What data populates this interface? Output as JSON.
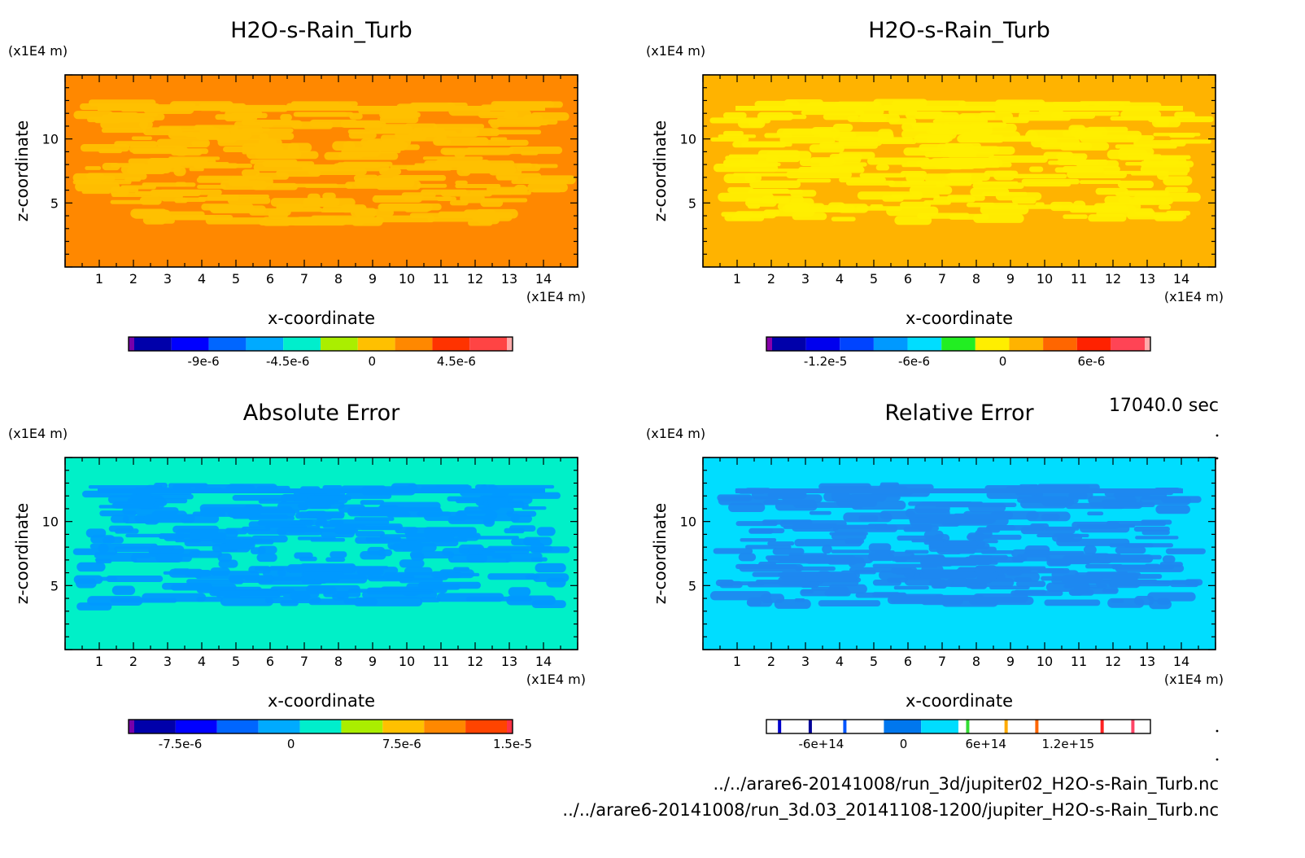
{
  "time_label": "17040.0 sec",
  "files": {
    "file1": "../../arare6-20141008/run_3d/jupiter02_H2O-s-Rain_Turb.nc",
    "file2": "../../arare6-20141008/run_3d.03_20141108-1200/jupiter_H2O-s-Rain_Turb.nc"
  },
  "chart_data": [
    {
      "type": "heatmap",
      "title": "H2O-s-Rain_Turb",
      "xlabel": "x-coordinate",
      "ylabel": "z-coordinate",
      "x_unit": "(x1E4 m)",
      "y_unit": "(x1E4 m)",
      "xlim": [
        0,
        15
      ],
      "ylim": [
        0,
        15
      ],
      "x_ticks": [
        "1",
        "2",
        "3",
        "4",
        "5",
        "6",
        "7",
        "8",
        "9",
        "10",
        "11",
        "12",
        "13",
        "14"
      ],
      "y_ticks": [
        "5",
        "10"
      ],
      "background_color": "#ff8800",
      "pattern_color": "#ffc000",
      "colorbar": {
        "colors": [
          "#7700aa",
          "#0000aa",
          "#0000ff",
          "#0066ff",
          "#00aaff",
          "#00eecc",
          "#aaee00",
          "#ffc000",
          "#ff8800",
          "#ff3300",
          "#ff4444",
          "#ffaaaa"
        ],
        "tick_labels": [
          "-9e-6",
          "-4.5e-6",
          "0",
          "4.5e-6"
        ],
        "tick_values": [
          -9e-06,
          -4.5e-06,
          0,
          4.5e-06
        ],
        "range": [
          -1.3e-05,
          7.5e-06
        ]
      }
    },
    {
      "type": "heatmap",
      "title": "H2O-s-Rain_Turb",
      "xlabel": "x-coordinate",
      "ylabel": "z-coordinate",
      "x_unit": "(x1E4 m)",
      "y_unit": "(x1E4 m)",
      "xlim": [
        0,
        15
      ],
      "ylim": [
        0,
        15
      ],
      "x_ticks": [
        "1",
        "2",
        "3",
        "4",
        "5",
        "6",
        "7",
        "8",
        "9",
        "10",
        "11",
        "12",
        "13",
        "14"
      ],
      "y_ticks": [
        "5",
        "10"
      ],
      "background_color": "#ffb300",
      "pattern_color": "#ffee00",
      "colorbar": {
        "colors": [
          "#8800aa",
          "#0000aa",
          "#0000ee",
          "#0044ff",
          "#0099ff",
          "#00ddff",
          "#22ee22",
          "#ffee00",
          "#ffb300",
          "#ff6600",
          "#ff2200",
          "#ff4455",
          "#ffaaaa"
        ],
        "tick_labels": [
          "-1.2e-5",
          "-6e-6",
          "0",
          "6e-6"
        ],
        "tick_values": [
          -1.2e-05,
          -6e-06,
          0,
          6e-06
        ],
        "range": [
          -1.6e-05,
          1e-05
        ]
      }
    },
    {
      "type": "heatmap",
      "title": "Absolute Error",
      "xlabel": "x-coordinate",
      "ylabel": "z-coordinate",
      "x_unit": "(x1E4 m)",
      "y_unit": "(x1E4 m)",
      "xlim": [
        0,
        15
      ],
      "ylim": [
        0,
        15
      ],
      "x_ticks": [
        "1",
        "2",
        "3",
        "4",
        "5",
        "6",
        "7",
        "8",
        "9",
        "10",
        "11",
        "12",
        "13",
        "14"
      ],
      "y_ticks": [
        "5",
        "10"
      ],
      "background_color": "#00f0c8",
      "pattern_color": "#0099ff",
      "colorbar": {
        "colors": [
          "#7700aa",
          "#0000aa",
          "#0000ff",
          "#0066ff",
          "#00aaff",
          "#00eecc",
          "#aaee00",
          "#ffc000",
          "#ff8800",
          "#ff4400",
          "#ff3344"
        ],
        "tick_labels": [
          "-7.5e-6",
          "0",
          "7.5e-6",
          "1.5e-5"
        ],
        "tick_values": [
          -7.5e-06,
          0,
          7.5e-06,
          1.5e-05
        ],
        "range": [
          -1.1e-05,
          1.5e-05
        ]
      }
    },
    {
      "type": "heatmap",
      "title": "Relative Error",
      "xlabel": "x-coordinate",
      "ylabel": "z-coordinate",
      "x_unit": "(x1E4 m)",
      "y_unit": "(x1E4 m)",
      "xlim": [
        0,
        15
      ],
      "ylim": [
        0,
        15
      ],
      "x_ticks": [
        "1",
        "2",
        "3",
        "4",
        "5",
        "6",
        "7",
        "8",
        "9",
        "10",
        "11",
        "12",
        "13",
        "14"
      ],
      "y_ticks": [
        "5",
        "10"
      ],
      "background_color": "#00ddff",
      "pattern_color": "#1e88f0",
      "colorbar": {
        "colors": [
          "#ffffff",
          "#ffffff",
          "#ffffff",
          "#ffffff",
          "#0077ee",
          "#00ddff",
          "#ffffff",
          "#ffffff",
          "#ffffff",
          "#ffffff",
          "#ffffff",
          "#ffffff"
        ],
        "line_colors": [
          "#0000cc",
          "#000099",
          "#0055ff",
          "#33dd33",
          "#ffaa00",
          "#ff6600",
          "#ff2222",
          "#ff4466"
        ],
        "tick_labels": [
          "-6e+14",
          "0",
          "6e+14",
          "1.2e+15"
        ],
        "tick_values": [
          -600000000000000.0,
          0,
          600000000000000.0,
          1200000000000000.0
        ],
        "range": [
          -1000000000000000.0,
          1800000000000000.0
        ]
      }
    }
  ]
}
